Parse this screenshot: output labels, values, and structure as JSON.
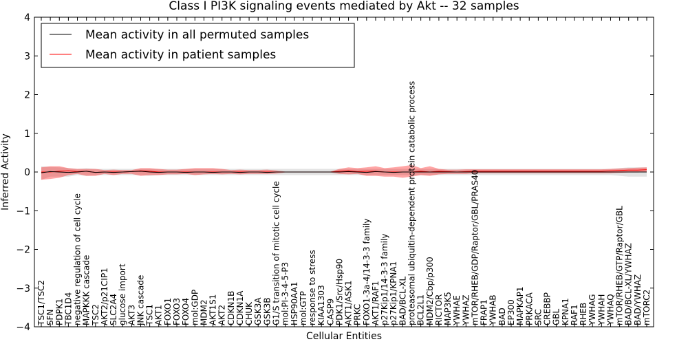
{
  "chart_data": {
    "type": "line",
    "title": "Class I PI3K signaling events mediated by Akt -- 32 samples",
    "xlabel": "Cellular Entities",
    "ylabel": "Inferred Activity",
    "ylim": [
      -4,
      4
    ],
    "yticks": [
      4,
      3,
      2,
      1,
      0,
      -1,
      -2,
      -3,
      -4
    ],
    "ytick_labels": [
      "4",
      "3",
      "2",
      "1",
      "0",
      "−1",
      "−2",
      "−3",
      "−4"
    ],
    "grid": false,
    "legend_position": "top-left",
    "categories": [
      "TSC1/TSC2",
      "SFN",
      "PDPK1",
      "TBC1D4",
      "negative regulation of cell cycle",
      "MAPKKK cascade",
      "TSC2",
      "AKT2/p21CIP1",
      "SLC2A4",
      "glucose import",
      "AKT3",
      "JNK cascade",
      "TSC1",
      "AKT1",
      "FOXO1",
      "FOXO3",
      "FOXO4",
      "mol:GDP",
      "MDM2",
      "AKT1S1",
      "AKT2",
      "CDKN1B",
      "CDKN1A",
      "CHUK",
      "GSK3A",
      "GSK3B",
      "G1/S transition of mitotic cell cycle",
      "mol:PI-3-4-5-P3",
      "HSP90AA1",
      "mol:GTP",
      "response to stress",
      "KIAA1303",
      "CASP9",
      "PDK1/Src/Hsp90",
      "AKT1/ASK1",
      "PRKC",
      "FOXO1-3a-4/14-3-3 family",
      "AKT1/RAF1",
      "p27Kip1/14-3-3 family",
      "p27Kip1/KPNA1",
      "BAD/BCL-XL",
      "proteasomal ubiquitin-dependent protein catabolic process",
      "BCL2L1",
      "MDM2/Cbp/p300",
      "RICTOR",
      "MAP3K5",
      "YWHAE",
      "YWHAZ",
      "mTOR/RHEB/GDP/Raptor/GBL/PRAS40",
      "FRAP1",
      "YWHAB",
      "BAD",
      "EP300",
      "MAPKAP1",
      "PRKACA",
      "SRC",
      "CREBBP",
      "GBL",
      "KPNA1",
      "RAF1",
      "RHEB",
      "YWHAG",
      "YWHAH",
      "YWHAQ",
      "mTOR/RHEB/GTP/Raptor/GBL",
      "BAD/BCL-XL/YWHAZ",
      "BAD/YWHAZ",
      "mTORC2"
    ],
    "series": [
      {
        "name": "Mean activity in all permuted samples",
        "color": "#000000",
        "values": [
          -0.02,
          0.01,
          0.0,
          -0.01,
          0.0,
          0.02,
          -0.01,
          0.0,
          -0.01,
          0.0,
          0.01,
          0.02,
          0.0,
          -0.01,
          0.0,
          0.0,
          -0.01,
          0.0,
          0.0,
          -0.01,
          0.0,
          0.0,
          -0.01,
          0.0,
          0.0,
          -0.01,
          0.0,
          0.0,
          0.0,
          0.0,
          0.0,
          0.0,
          0.0,
          0.0,
          0.01,
          0.0,
          -0.01,
          0.01,
          0.0,
          -0.01,
          0.0,
          0.0,
          0.0,
          0.0,
          0.0,
          0.0,
          0.0,
          0.0,
          0.0,
          0.0,
          0.0,
          0.0,
          0.0,
          0.0,
          0.0,
          0.0,
          0.0,
          0.0,
          0.0,
          0.0,
          0.0,
          0.0,
          0.0,
          0.0,
          0.0,
          0.0,
          0.0,
          0.0
        ],
        "band_low": [
          -0.2,
          -0.12,
          -0.12,
          -0.12,
          -0.08,
          -0.1,
          -0.08,
          -0.08,
          -0.08,
          -0.08,
          -0.08,
          -0.08,
          -0.1,
          -0.08,
          -0.08,
          -0.08,
          -0.08,
          -0.08,
          -0.08,
          -0.08,
          -0.08,
          -0.08,
          -0.08,
          -0.08,
          -0.08,
          -0.08,
          -0.08,
          -0.08,
          -0.08,
          -0.08,
          -0.08,
          -0.08,
          -0.08,
          -0.08,
          -0.08,
          -0.08,
          -0.08,
          -0.08,
          -0.08,
          -0.08,
          -0.08,
          -0.08,
          -0.08,
          -0.08,
          -0.08,
          -0.08,
          -0.08,
          -0.08,
          -0.08,
          -0.08,
          -0.08,
          -0.08,
          -0.08,
          -0.08,
          -0.08,
          -0.08,
          -0.08,
          -0.08,
          -0.08,
          -0.08,
          -0.08,
          -0.08,
          -0.08,
          -0.08,
          -0.1,
          -0.12,
          -0.12,
          -0.12
        ],
        "band_high": [
          0.15,
          0.13,
          0.12,
          0.1,
          0.08,
          0.1,
          0.08,
          0.08,
          0.08,
          0.08,
          0.08,
          0.08,
          0.08,
          0.08,
          0.08,
          0.08,
          0.08,
          0.08,
          0.08,
          0.08,
          0.08,
          0.08,
          0.08,
          0.08,
          0.08,
          0.08,
          0.08,
          0.08,
          0.08,
          0.08,
          0.08,
          0.08,
          0.08,
          0.08,
          0.08,
          0.08,
          0.08,
          0.08,
          0.08,
          0.08,
          0.08,
          0.08,
          0.08,
          0.08,
          0.08,
          0.08,
          0.08,
          0.08,
          0.08,
          0.08,
          0.08,
          0.08,
          0.08,
          0.08,
          0.08,
          0.08,
          0.08,
          0.08,
          0.08,
          0.08,
          0.08,
          0.08,
          0.08,
          0.08,
          0.1,
          0.12,
          0.12,
          0.12
        ]
      },
      {
        "name": "Mean activity in patient samples",
        "color": "#ff0000",
        "values": [
          0.0,
          0.0,
          0.02,
          0.03,
          0.01,
          0.02,
          -0.01,
          0.0,
          0.0,
          0.0,
          0.01,
          0.03,
          0.02,
          0.0,
          0.0,
          0.0,
          0.0,
          0.0,
          0.0,
          0.0,
          0.0,
          0.0,
          0.0,
          0.0,
          0.0,
          0.0,
          0.0,
          0.0,
          0.0,
          0.0,
          0.0,
          0.0,
          0.0,
          0.02,
          0.03,
          0.01,
          0.02,
          0.02,
          0.0,
          0.0,
          0.0,
          0.0,
          0.02,
          0.0,
          0.02,
          0.01,
          0.0,
          0.01,
          0.02,
          0.02,
          0.02,
          0.02,
          0.02,
          0.02,
          0.02,
          0.02,
          0.02,
          0.02,
          0.02,
          0.02,
          0.02,
          0.02,
          0.02,
          0.03,
          0.04,
          0.05,
          0.05,
          0.06
        ],
        "band_low": [
          -0.2,
          -0.18,
          -0.15,
          -0.08,
          -0.05,
          -0.1,
          -0.1,
          -0.05,
          -0.08,
          -0.05,
          -0.05,
          -0.1,
          -0.08,
          -0.08,
          -0.06,
          -0.06,
          -0.05,
          -0.08,
          -0.06,
          -0.05,
          -0.06,
          -0.05,
          -0.06,
          -0.05,
          -0.05,
          -0.05,
          -0.04,
          -0.01,
          -0.01,
          -0.01,
          -0.01,
          -0.01,
          -0.01,
          -0.05,
          -0.06,
          -0.05,
          -0.1,
          -0.1,
          -0.12,
          -0.12,
          -0.15,
          -0.12,
          -0.08,
          -0.1,
          -0.06,
          -0.05,
          -0.05,
          -0.05,
          -0.03,
          -0.03,
          -0.03,
          -0.03,
          -0.03,
          -0.03,
          -0.03,
          -0.03,
          -0.03,
          -0.03,
          -0.03,
          -0.03,
          -0.03,
          -0.03,
          -0.03,
          -0.03,
          -0.02,
          -0.01,
          -0.01,
          0.0
        ],
        "band_high": [
          0.12,
          0.15,
          0.15,
          0.1,
          0.08,
          0.08,
          0.08,
          0.05,
          0.06,
          0.05,
          0.05,
          0.1,
          0.1,
          0.08,
          0.06,
          0.06,
          0.08,
          0.1,
          0.1,
          0.1,
          0.08,
          0.05,
          0.06,
          0.05,
          0.05,
          0.06,
          0.04,
          0.01,
          0.01,
          0.01,
          0.01,
          0.01,
          0.01,
          0.08,
          0.12,
          0.1,
          0.12,
          0.15,
          0.1,
          0.12,
          0.15,
          0.18,
          0.1,
          0.15,
          0.08,
          0.06,
          0.06,
          0.07,
          0.07,
          0.07,
          0.07,
          0.07,
          0.07,
          0.07,
          0.07,
          0.07,
          0.07,
          0.07,
          0.07,
          0.07,
          0.07,
          0.07,
          0.07,
          0.08,
          0.09,
          0.1,
          0.11,
          0.12
        ]
      }
    ]
  }
}
